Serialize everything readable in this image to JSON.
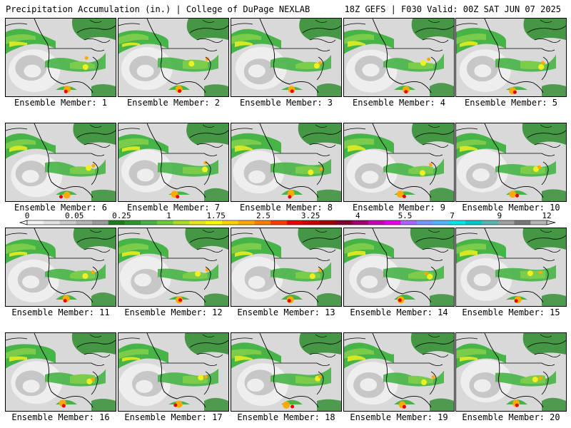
{
  "header": {
    "left": "Precipitation Accumulation (in.) | College of DuPage NEXLAB",
    "right": "18Z GEFS | F030 Valid: 00Z SAT JUN 07 2025"
  },
  "panels": [
    {
      "label": "Ensemble Member: 1"
    },
    {
      "label": "Ensemble Member: 2"
    },
    {
      "label": "Ensemble Member: 3"
    },
    {
      "label": "Ensemble Member: 4"
    },
    {
      "label": "Ensemble Member: 5"
    },
    {
      "label": "Ensemble Member: 6"
    },
    {
      "label": "Ensemble Member: 7"
    },
    {
      "label": "Ensemble Member: 8"
    },
    {
      "label": "Ensemble Member: 9"
    },
    {
      "label": "Ensemble Member: 10"
    },
    {
      "label": "Ensemble Member: 11"
    },
    {
      "label": "Ensemble Member: 12"
    },
    {
      "label": "Ensemble Member: 13"
    },
    {
      "label": "Ensemble Member: 14"
    },
    {
      "label": "Ensemble Member: 15"
    },
    {
      "label": "Ensemble Member: 16"
    },
    {
      "label": "Ensemble Member: 17"
    },
    {
      "label": "Ensemble Member: 18"
    },
    {
      "label": "Ensemble Member: 19"
    },
    {
      "label": "Ensemble Member: 20"
    }
  ],
  "colorbar": {
    "tick_labels": [
      "0",
      "0.05",
      "0.25",
      "1",
      "1.75",
      "2.5",
      "3.25",
      "4",
      "5.5",
      "7",
      "9",
      "12"
    ],
    "colors": [
      "#f4f4f4",
      "#e2e2e2",
      "#cccccc",
      "#b4b4b4",
      "#9c9c9c",
      "#1e7d1e",
      "#2c962c",
      "#46b446",
      "#6ccc3c",
      "#a8dc28",
      "#e6e61e",
      "#fafa00",
      "#ffd200",
      "#ffaa00",
      "#ff7d00",
      "#ff3c00",
      "#e60000",
      "#c80000",
      "#a00000",
      "#7d0028",
      "#a0006e",
      "#c800b4",
      "#e600e6",
      "#aa64ff",
      "#7896ff",
      "#50b4ff",
      "#00e6e6",
      "#00c8c8",
      "#5ab4b4",
      "#a0a0a0",
      "#787878",
      "#b4b4b4"
    ]
  },
  "map_colors": {
    "ocean": "#d9d9d9",
    "gray_light": "#eeeeee",
    "gray_mid": "#bdbdbd",
    "green_dark": "#2a8a2a",
    "green_mid": "#46b446",
    "green_light": "#7ccc4c",
    "yellow": "#f0f01e",
    "orange": "#ffaa00",
    "red": "#e60000",
    "border": "#000000"
  }
}
